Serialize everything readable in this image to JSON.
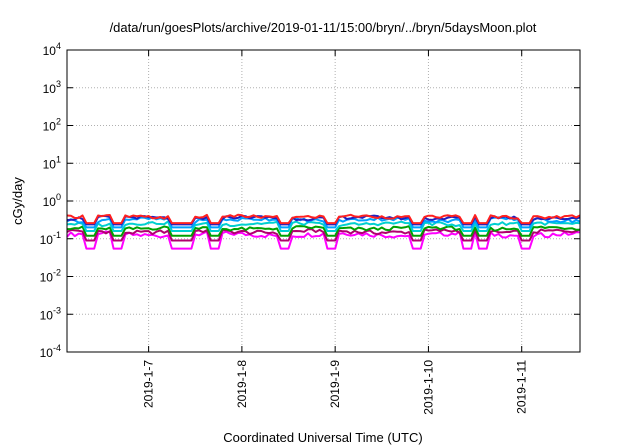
{
  "chart_data": {
    "type": "line",
    "title": "/data/run/goesPlots/archive/2019-01-11/15:00/bryn/../bryn/5daysMoon.plot",
    "xlabel": "Coordinated Universal Time (UTC)",
    "ylabel": "cGy/day",
    "y_scale": "log",
    "ylim": [
      0.0001,
      10000
    ],
    "y_ticks": [
      {
        "value": 0.0001,
        "base": "10",
        "exp": "-4"
      },
      {
        "value": 0.001,
        "base": "10",
        "exp": "-3"
      },
      {
        "value": 0.01,
        "base": "10",
        "exp": "-2"
      },
      {
        "value": 0.1,
        "base": "10",
        "exp": "-1"
      },
      {
        "value": 1,
        "base": "10",
        "exp": "0"
      },
      {
        "value": 10,
        "base": "10",
        "exp": "1"
      },
      {
        "value": 100,
        "base": "10",
        "exp": "2"
      },
      {
        "value": 1000,
        "base": "10",
        "exp": "3"
      },
      {
        "value": 10000,
        "base": "10",
        "exp": "4"
      }
    ],
    "xlim": [
      "2019-01-06T03:00",
      "2019-01-11T15:00"
    ],
    "x_ticks": [
      {
        "value": "2019-01-07T00:00",
        "label": "2019-1-7"
      },
      {
        "value": "2019-01-08T00:00",
        "label": "2019-1-8"
      },
      {
        "value": "2019-01-09T00:00",
        "label": "2019-1-9"
      },
      {
        "value": "2019-01-10T00:00",
        "label": "2019-1-10"
      },
      {
        "value": "2019-01-11T00:00",
        "label": "2019-1-11"
      }
    ],
    "grid": true,
    "legend": "none",
    "dip_times": [
      "2019-01-06T09:00",
      "2019-01-06T16:00",
      "2019-01-07T07:00",
      "2019-01-07T10:00",
      "2019-01-07T17:00",
      "2019-01-08T11:00",
      "2019-01-08T23:00",
      "2019-01-09T21:00",
      "2019-01-10T10:00",
      "2019-01-10T14:00",
      "2019-01-11T01:00"
    ],
    "series": [
      {
        "color": "#ff00ff",
        "base": 0.13,
        "amp": 0.018,
        "dip": 0.055
      },
      {
        "color": "#b0006e",
        "base": 0.155,
        "amp": 0.018,
        "dip": 0.09
      },
      {
        "color": "#00a000",
        "base": 0.19,
        "amp": 0.02,
        "dip": 0.12
      },
      {
        "color": "#00d0d0",
        "base": 0.25,
        "amp": 0.025,
        "dip": 0.16
      },
      {
        "color": "#00a0ff",
        "base": 0.32,
        "amp": 0.035,
        "dip": 0.2
      },
      {
        "color": "#2020c0",
        "base": 0.36,
        "amp": 0.035,
        "dip": 0.24
      },
      {
        "color": "#ff2020",
        "base": 0.385,
        "amp": 0.035,
        "dip": 0.26
      }
    ]
  }
}
